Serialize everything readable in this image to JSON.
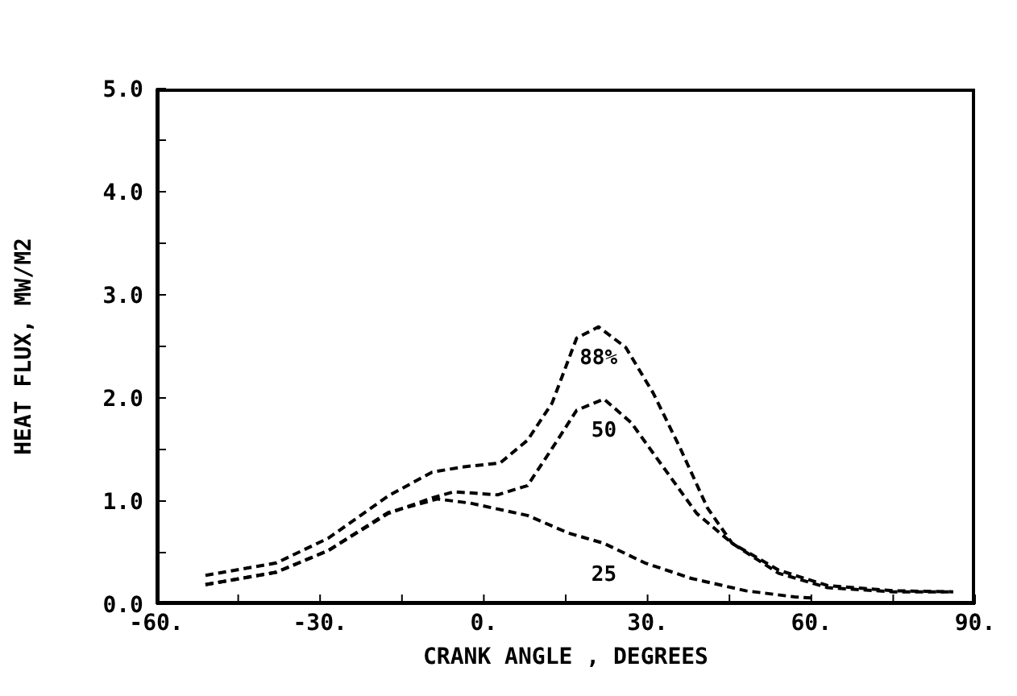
{
  "chart_data": {
    "type": "line",
    "xlabel": "CRANK ANGLE , DEGREES",
    "ylabel": "HEAT FLUX, MW/M2",
    "xlim": [
      -60,
      90
    ],
    "ylim": [
      0,
      5
    ],
    "xticks": [
      {
        "value": -60,
        "label": "-60."
      },
      {
        "value": -45,
        "label": null
      },
      {
        "value": -30,
        "label": "-30."
      },
      {
        "value": -15,
        "label": null
      },
      {
        "value": 0,
        "label": "0."
      },
      {
        "value": 15,
        "label": null
      },
      {
        "value": 30,
        "label": "30."
      },
      {
        "value": 45,
        "label": null
      },
      {
        "value": 60,
        "label": "60."
      },
      {
        "value": 75,
        "label": null
      },
      {
        "value": 90,
        "label": "90."
      }
    ],
    "yticks": [
      {
        "value": 0,
        "label": "0.0"
      },
      {
        "value": 0.5,
        "label": null
      },
      {
        "value": 1,
        "label": "1.0"
      },
      {
        "value": 1.5,
        "label": null
      },
      {
        "value": 2,
        "label": "2.0"
      },
      {
        "value": 2.5,
        "label": null
      },
      {
        "value": 3,
        "label": "3.0"
      },
      {
        "value": 3.5,
        "label": null
      },
      {
        "value": 4,
        "label": "4.0"
      },
      {
        "value": 4.5,
        "label": null
      },
      {
        "value": 5,
        "label": "5.0"
      }
    ],
    "grid": false,
    "legend": false,
    "marker": "none",
    "line_style": "dashed",
    "series": [
      {
        "name": "88%",
        "color": "#000000",
        "x": [
          -51,
          -38,
          -28.5,
          -17.5,
          -9.5,
          -4,
          3,
          8,
          12.5,
          17,
          21,
          26,
          31,
          36,
          41,
          45.5,
          54,
          63,
          75,
          86
        ],
        "values": [
          0.28,
          0.4,
          0.64,
          1.05,
          1.28,
          1.33,
          1.37,
          1.59,
          1.95,
          2.58,
          2.69,
          2.49,
          2.05,
          1.51,
          0.93,
          0.59,
          0.33,
          0.18,
          0.13,
          0.12
        ]
      },
      {
        "name": "50",
        "color": "#000000",
        "x": [
          -51,
          -38,
          -28.5,
          -17.5,
          -9.5,
          -5.5,
          2.5,
          8,
          12.5,
          17,
          22,
          27,
          33,
          39,
          45.5,
          54,
          63,
          75,
          86
        ],
        "values": [
          0.19,
          0.31,
          0.52,
          0.88,
          1.03,
          1.09,
          1.06,
          1.15,
          1.51,
          1.88,
          1.99,
          1.76,
          1.32,
          0.88,
          0.59,
          0.3,
          0.16,
          0.12,
          0.12
        ]
      },
      {
        "name": "25",
        "color": "#000000",
        "x": [
          -51,
          -38,
          -28.5,
          -17.5,
          -8.5,
          -2.5,
          8,
          15.5,
          22,
          29.5,
          38,
          48,
          57,
          60
        ],
        "values": [
          0.19,
          0.31,
          0.52,
          0.89,
          1.02,
          0.98,
          0.86,
          0.69,
          0.59,
          0.4,
          0.25,
          0.13,
          0.07,
          0.06
        ]
      }
    ]
  }
}
